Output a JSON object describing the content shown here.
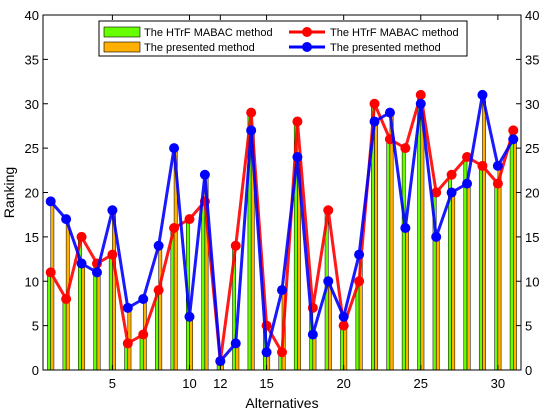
{
  "chart_data": {
    "type": "bar",
    "title": "",
    "xlabel": "Alternatives",
    "ylabel": "Ranking",
    "ylim": [
      0,
      40
    ],
    "xlim": [
      0.5,
      31.5
    ],
    "yticks": [
      0,
      5,
      10,
      15,
      20,
      25,
      30,
      35,
      40
    ],
    "xticks": [
      5,
      10,
      12,
      15,
      20,
      25,
      30
    ],
    "x": [
      1,
      2,
      3,
      4,
      5,
      6,
      7,
      8,
      9,
      10,
      11,
      12,
      13,
      14,
      15,
      16,
      17,
      18,
      19,
      20,
      21,
      22,
      23,
      24,
      25,
      26,
      27,
      28,
      29,
      30,
      31
    ],
    "grid": false,
    "legend_placement": "top-center",
    "series": [
      {
        "name": "The HTrF MABAC method",
        "kind": "bar",
        "color": "#66ff00",
        "values": [
          11,
          8,
          15,
          12,
          13,
          3,
          4,
          9,
          16,
          17,
          19,
          1,
          14,
          29,
          5,
          2,
          28,
          7,
          18,
          5,
          10,
          30,
          26,
          25,
          31,
          20,
          22,
          24,
          23,
          21,
          27
        ]
      },
      {
        "name": "The presented method",
        "kind": "bar",
        "color": "#ffb000",
        "values": [
          19,
          17,
          12,
          11,
          18,
          7,
          8,
          14,
          25,
          6,
          22,
          1,
          3,
          27,
          2,
          9,
          24,
          4,
          10,
          6,
          13,
          28,
          29,
          16,
          30,
          15,
          20,
          21,
          31,
          23,
          26
        ]
      },
      {
        "name": "The HTrF MABAC method",
        "kind": "line",
        "color": "#ff0000",
        "values": [
          11,
          8,
          15,
          12,
          13,
          3,
          4,
          9,
          16,
          17,
          19,
          1,
          14,
          29,
          5,
          2,
          28,
          7,
          18,
          5,
          10,
          30,
          26,
          25,
          31,
          20,
          22,
          24,
          23,
          21,
          27
        ]
      },
      {
        "name": "The presented method",
        "kind": "line",
        "color": "#0000ff",
        "values": [
          19,
          17,
          12,
          11,
          18,
          7,
          8,
          14,
          25,
          6,
          22,
          1,
          3,
          27,
          2,
          9,
          24,
          4,
          10,
          6,
          13,
          28,
          29,
          16,
          30,
          15,
          20,
          21,
          31,
          23,
          26
        ]
      }
    ]
  }
}
